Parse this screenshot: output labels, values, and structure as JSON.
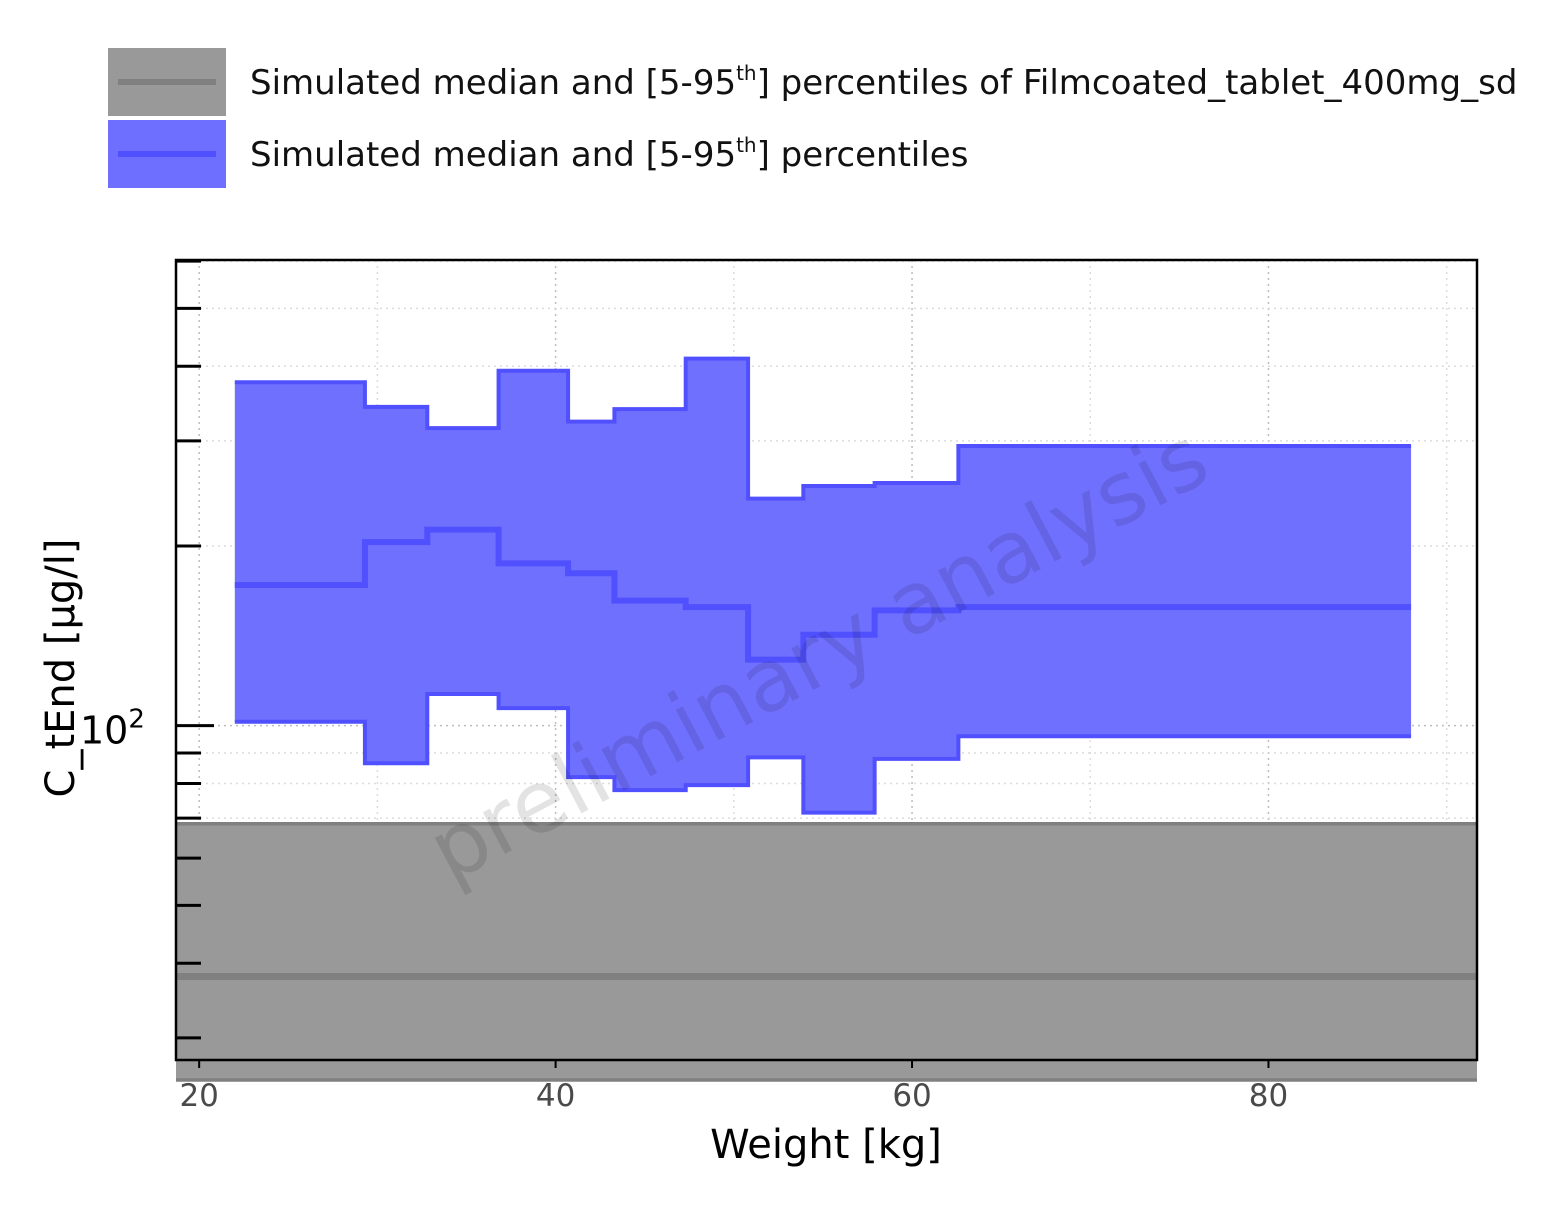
{
  "chart_data": {
    "type": "area",
    "step": true,
    "xlabel": "Weight [kg]",
    "ylabel": "C_tEnd [µg/l]",
    "xlim": [
      18.7,
      91.7
    ],
    "ylim_log10": [
      1.44,
      2.78
    ],
    "y_scale": "log",
    "x_ticks": [
      20,
      40,
      60,
      80
    ],
    "x_tick_labels": [
      "20",
      "40",
      "60",
      "80"
    ],
    "y_ticks": [
      100
    ],
    "y_tick_labels": [
      "10",
      "2"
    ],
    "grid": true,
    "legend_position": "top",
    "watermark": "preliminary analysis",
    "legend": [
      {
        "text_before": "Simulated median and [5-95",
        "sup": "th",
        "text_after": "] percentiles of Filmcoated_tablet_400mg_sd",
        "color": "#999999"
      },
      {
        "text_before": "Simulated median and [5-95",
        "sup": "th",
        "text_after": "] percentiles",
        "color": "#6f6fff"
      }
    ],
    "series": [
      {
        "name": "Simulated median and [5-95th] percentiles of Filmcoated_tablet_400mg_sd",
        "fill_color": "#999999",
        "line_color": "#808080",
        "x": [
          18.7,
          91.7
        ],
        "median": [
          38,
          38
        ],
        "p5": [
          25.5,
          25.5
        ],
        "p95": [
          68.5,
          68.5
        ]
      },
      {
        "name": "Simulated median and [5-95th] percentiles",
        "fill_color": "#7070ff",
        "line_color": "#5050ff",
        "edges": [
          22,
          29.3,
          32.8,
          36.8,
          40.7,
          43.3,
          47.3,
          50.8,
          53.9,
          57.9,
          62.6,
          88
        ],
        "median": [
          172,
          203,
          213,
          187,
          180,
          162,
          158,
          129,
          142,
          156,
          158
        ],
        "p5": [
          101.5,
          86.5,
          113,
          107,
          82,
          78,
          79.5,
          88.5,
          71.5,
          88,
          96
        ],
        "p95": [
          376,
          342,
          315,
          393,
          323,
          339,
          412,
          240,
          252,
          255,
          294
        ]
      }
    ]
  }
}
